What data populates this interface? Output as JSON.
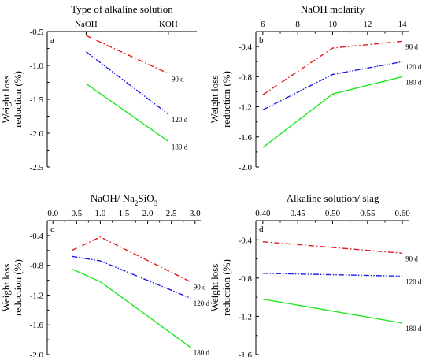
{
  "colors": {
    "90 d": "#e11b1b",
    "120 d": "#1b1be1",
    "180 d": "#22e622"
  },
  "chart_data": [
    {
      "type": "line",
      "panel": "a",
      "title": "Type of alkaline solution",
      "ylabel": [
        "Weight loss",
        "reduction (%)"
      ],
      "xscale": "categorical",
      "categories": [
        "NaOH",
        "KOH"
      ],
      "x": [
        "NaOH",
        "KOH"
      ],
      "ylim": [
        -2.5,
        -0.5
      ],
      "yticks": [
        "-0.5",
        "-1.0",
        "-1.5",
        "-2.0",
        "-2.5"
      ],
      "series": [
        {
          "name": "90 d",
          "values": [
            -0.56,
            -1.12
          ]
        },
        {
          "name": "120 d",
          "values": [
            -0.8,
            -1.72
          ]
        },
        {
          "name": "180 d",
          "values": [
            -1.27,
            -2.12
          ]
        }
      ]
    },
    {
      "type": "line",
      "panel": "b",
      "title": "NaOH molarity",
      "ylabel": [
        "Weight loss",
        "reduction (%)"
      ],
      "xlim": [
        6,
        14
      ],
      "xticks": [
        "6",
        "8",
        "10",
        "12",
        "14"
      ],
      "x": [
        6,
        10,
        14
      ],
      "ylim": [
        -2.0,
        -0.2
      ],
      "yticks": [
        "-0.4",
        "-0.8",
        "-1.2",
        "-1.6",
        "-2.0"
      ],
      "series": [
        {
          "name": "90 d",
          "values": [
            -1.04,
            -0.42,
            -0.33
          ]
        },
        {
          "name": "120 d",
          "values": [
            -1.24,
            -0.77,
            -0.6
          ]
        },
        {
          "name": "180 d",
          "values": [
            -1.74,
            -1.03,
            -0.8
          ]
        }
      ]
    },
    {
      "type": "line",
      "panel": "c",
      "title": "NaOH/ Na2SiO3",
      "title_parts": [
        "NaOH/ Na",
        "2",
        "SiO",
        "3"
      ],
      "ylabel": [
        "Weight loss",
        "reduction (%)"
      ],
      "xlim": [
        0.0,
        3.0
      ],
      "xticks": [
        "0.0",
        "0.5",
        "1.0",
        "1.5",
        "2.0",
        "2.5",
        "3.0"
      ],
      "x": [
        0.4,
        1.0,
        2.9
      ],
      "ylim": [
        -2.0,
        -0.2
      ],
      "yticks": [
        "-0.4",
        "-0.8",
        "-1.2",
        "-1.6",
        "-2.0"
      ],
      "series": [
        {
          "name": "90 d",
          "values": [
            -0.6,
            -0.42,
            -1.02
          ]
        },
        {
          "name": "120 d",
          "values": [
            -0.68,
            -0.74,
            -1.24
          ]
        },
        {
          "name": "180 d",
          "values": [
            -0.85,
            -1.02,
            -1.9
          ]
        }
      ]
    },
    {
      "type": "line",
      "panel": "d",
      "title": "Alkaline solution/ slag",
      "ylabel": [
        "Weight loss",
        "reduction (%)"
      ],
      "xlim": [
        0.4,
        0.6
      ],
      "xticks": [
        "0.40",
        "0.45",
        "0.50",
        "0.55",
        "0.60"
      ],
      "x": [
        0.4,
        0.6
      ],
      "ylim": [
        -1.6,
        -0.2
      ],
      "yticks": [
        "-0.4",
        "-0.8",
        "-1.2",
        "-1.6"
      ],
      "series": [
        {
          "name": "90 d",
          "values": [
            -0.42,
            -0.54
          ]
        },
        {
          "name": "120 d",
          "values": [
            -0.75,
            -0.78
          ]
        },
        {
          "name": "180 d",
          "values": [
            -1.02,
            -1.27
          ]
        }
      ]
    }
  ]
}
